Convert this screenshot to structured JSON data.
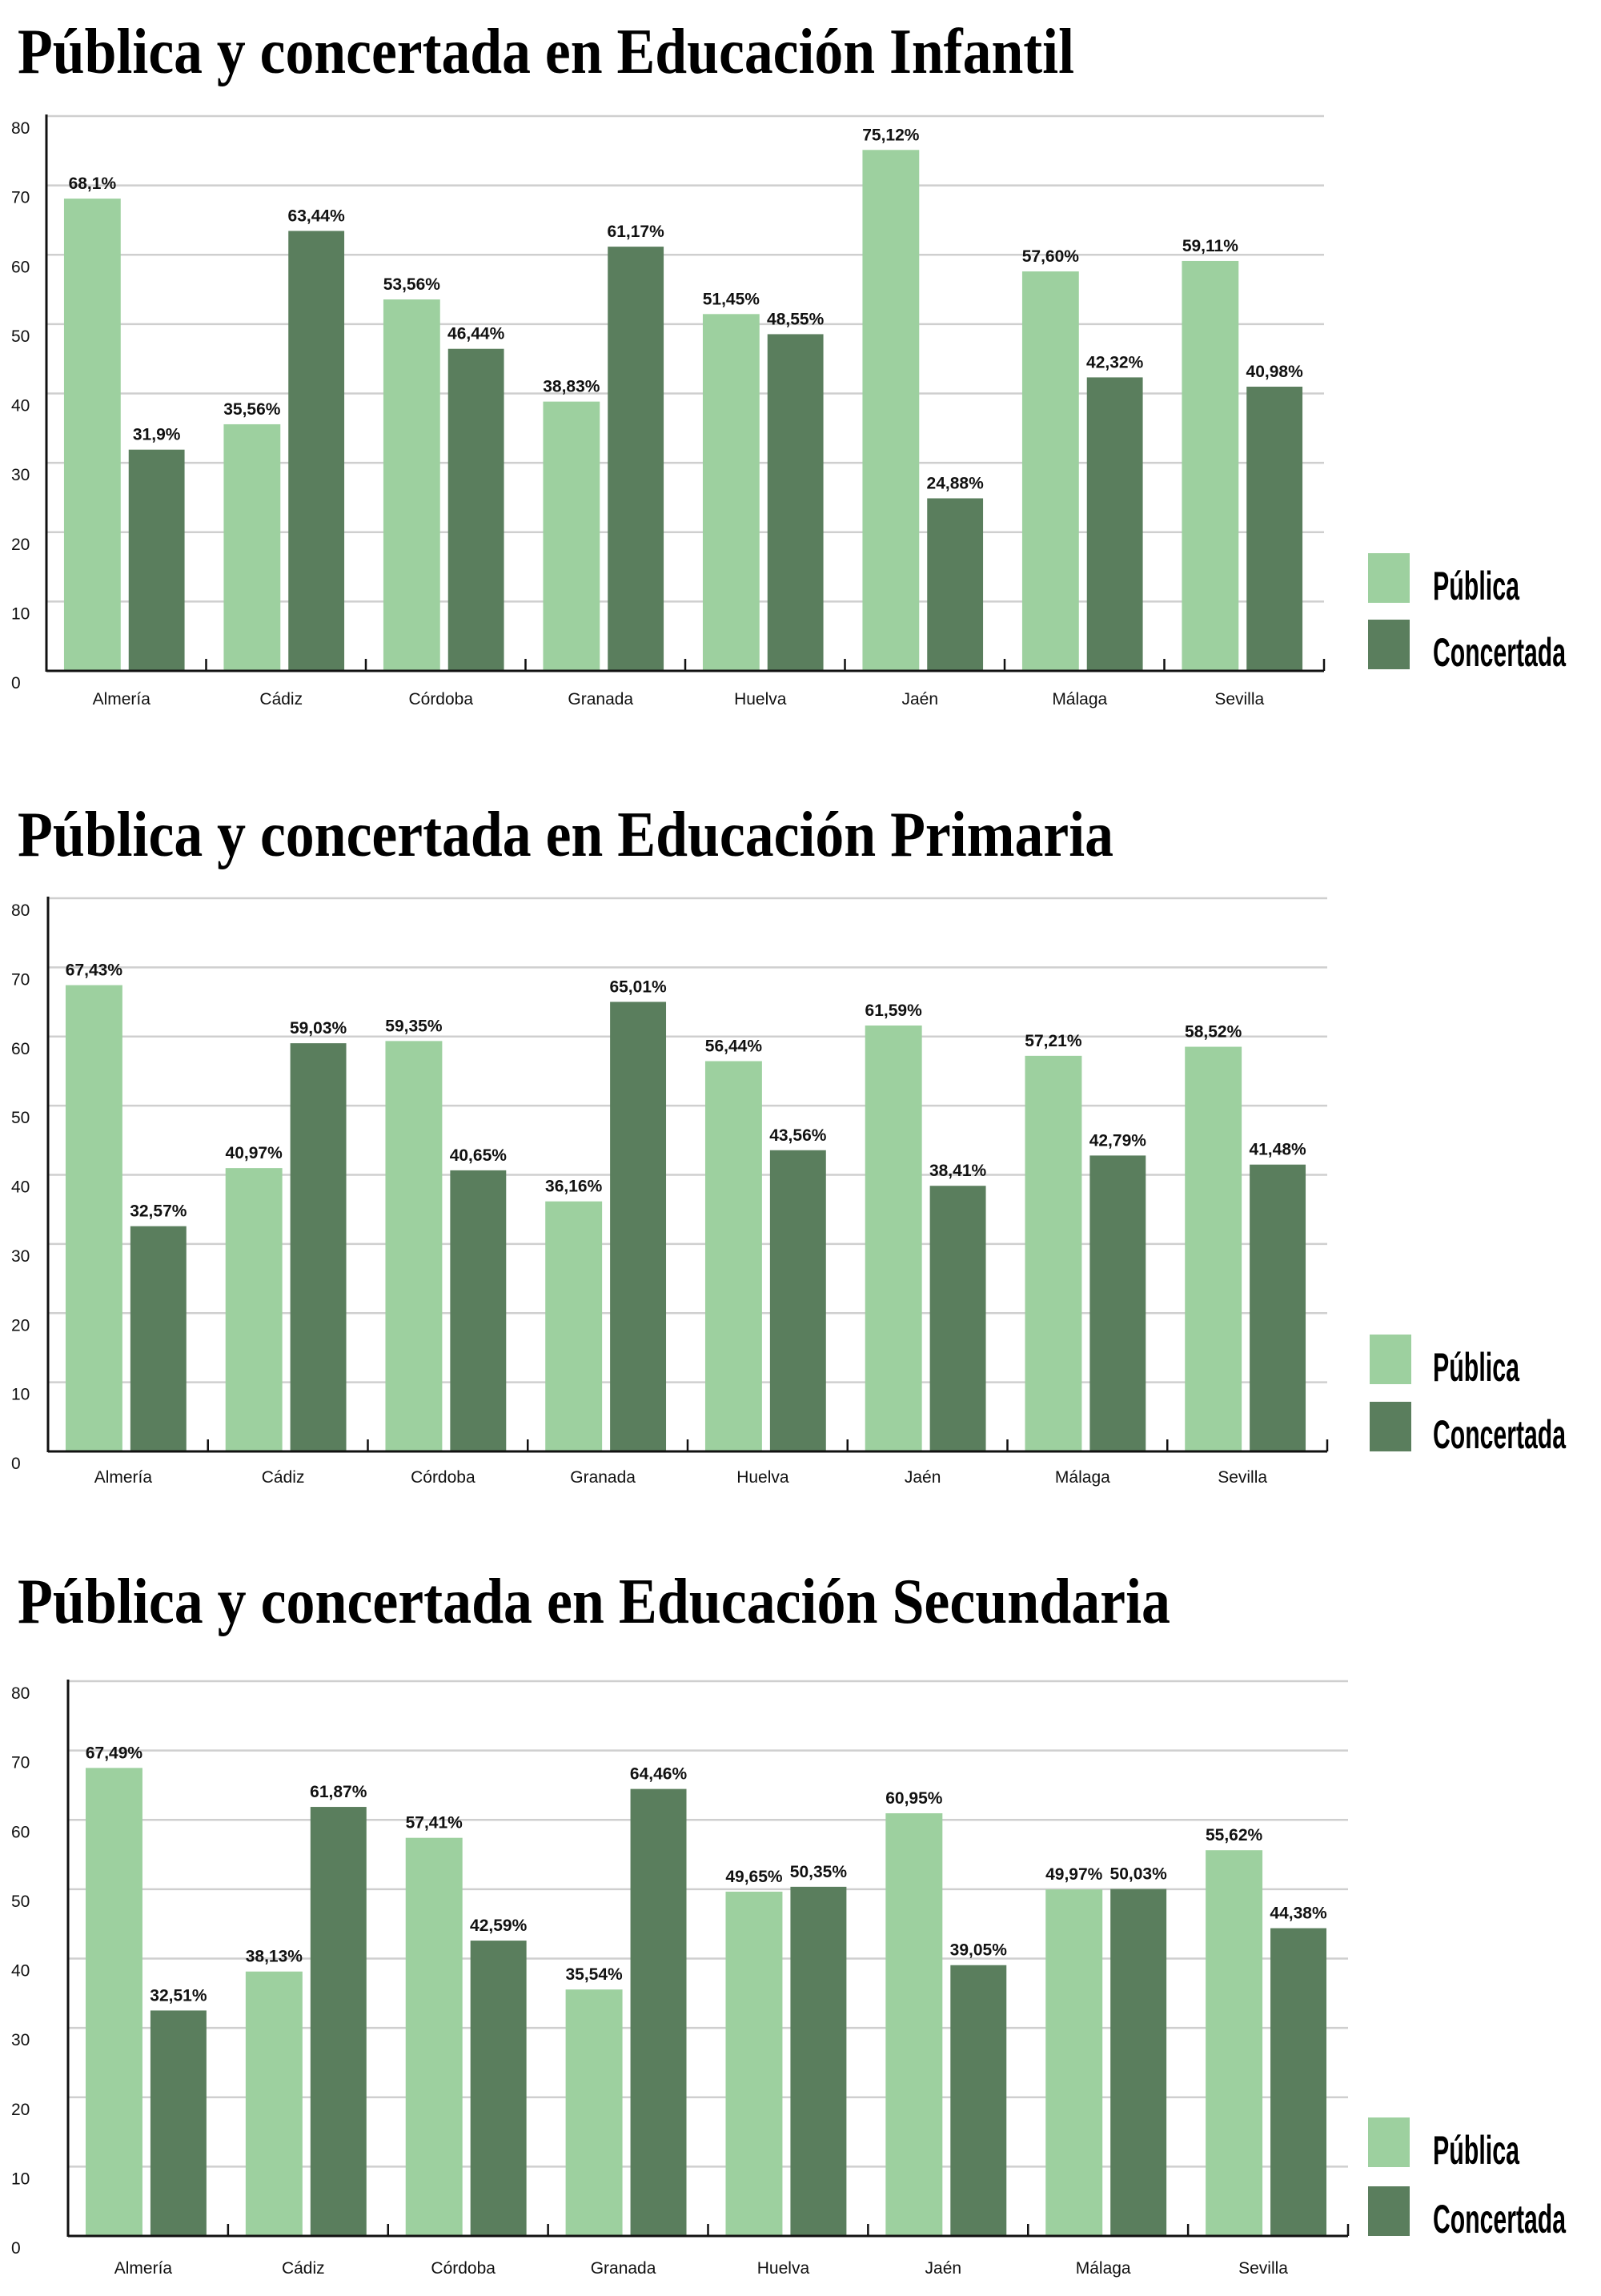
{
  "colors": {
    "publica": "#9dd09f",
    "concertada": "#5a7e5d",
    "grid": "#cfcfcf",
    "axis": "#111111"
  },
  "chart_data": [
    {
      "type": "bar",
      "title": "Pública y concertada en Educación Infantil",
      "categories": [
        "Almería",
        "Cádiz",
        "Córdoba",
        "Granada",
        "Huelva",
        "Jaén",
        "Málaga",
        "Sevilla"
      ],
      "ylim": [
        0,
        80
      ],
      "yticks": [
        "0",
        "10",
        "20",
        "30",
        "40",
        "50",
        "60",
        "70",
        "80"
      ],
      "grid": true,
      "legend": "right",
      "series": [
        {
          "name": "Pública",
          "values": [
            68.1,
            35.56,
            53.56,
            38.83,
            51.45,
            75.12,
            57.6,
            59.11
          ],
          "labels": [
            "68,1%",
            "35,56%",
            "53,56%",
            "38,83%",
            "51,45%",
            "75,12%",
            "57,60%",
            "59,11%"
          ]
        },
        {
          "name": "Concertada",
          "values": [
            31.9,
            63.44,
            46.44,
            61.17,
            48.55,
            24.88,
            42.32,
            40.98
          ],
          "labels": [
            "31,9%",
            "63,44%",
            "46,44%",
            "61,17%",
            "48,55%",
            "24,88%",
            "42,32%",
            "40,98%"
          ]
        }
      ]
    },
    {
      "type": "bar",
      "title": "Pública y concertada en Educación Primaria",
      "categories": [
        "Almería",
        "Cádiz",
        "Córdoba",
        "Granada",
        "Huelva",
        "Jaén",
        "Málaga",
        "Sevilla"
      ],
      "ylim": [
        0,
        80
      ],
      "yticks": [
        "0",
        "10",
        "20",
        "30",
        "40",
        "50",
        "60",
        "70",
        "80"
      ],
      "grid": true,
      "legend": "right",
      "series": [
        {
          "name": "Pública",
          "values": [
            67.43,
            40.97,
            59.35,
            36.16,
            56.44,
            61.59,
            57.21,
            58.52
          ],
          "labels": [
            "67,43%",
            "40,97%",
            "59,35%",
            "36,16%",
            "56,44%",
            "61,59%",
            "57,21%",
            "58,52%"
          ]
        },
        {
          "name": "Concertada",
          "values": [
            32.57,
            59.03,
            40.65,
            65.01,
            43.56,
            38.41,
            42.79,
            41.48
          ],
          "labels": [
            "32,57%",
            "59,03%",
            "40,65%",
            "65,01%",
            "43,56%",
            "38,41%",
            "42,79%",
            "41,48%"
          ]
        }
      ]
    },
    {
      "type": "bar",
      "title": "Pública y concertada en Educación Secundaria",
      "categories": [
        "Almería",
        "Cádiz",
        "Córdoba",
        "Granada",
        "Huelva",
        "Jaén",
        "Málaga",
        "Sevilla"
      ],
      "ylim": [
        0,
        80
      ],
      "yticks": [
        "0",
        "10",
        "20",
        "30",
        "40",
        "50",
        "60",
        "70",
        "80"
      ],
      "grid": true,
      "legend": "right",
      "series": [
        {
          "name": "Pública",
          "values": [
            67.49,
            38.13,
            57.41,
            35.54,
            49.65,
            60.95,
            49.97,
            55.62
          ],
          "labels": [
            "67,49%",
            "38,13%",
            "57,41%",
            "35,54%",
            "49,65%",
            "60,95%",
            "49,97%",
            "55,62%"
          ]
        },
        {
          "name": "Concertada",
          "values": [
            32.51,
            61.87,
            42.59,
            64.46,
            50.35,
            39.05,
            50.03,
            44.38
          ],
          "labels": [
            "32,51%",
            "61,87%",
            "42,59%",
            "64,46%",
            "50,35%",
            "39,05%",
            "50,03%",
            "44,38%"
          ]
        }
      ]
    }
  ]
}
